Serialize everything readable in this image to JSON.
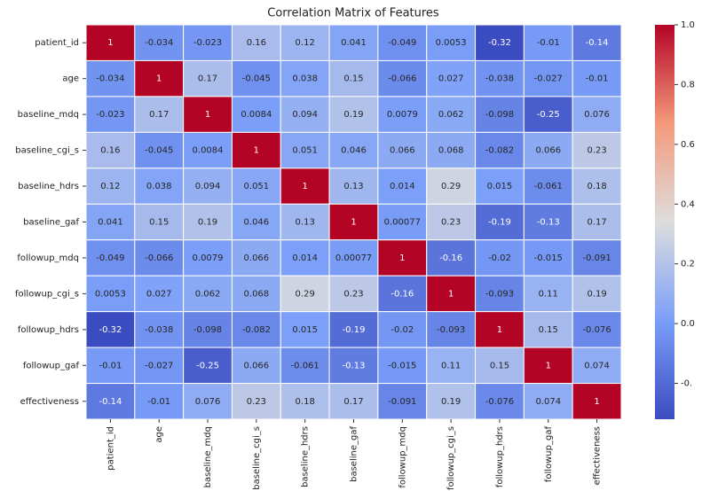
{
  "chart_data": {
    "type": "heatmap",
    "title": "Correlation Matrix of Features",
    "xcategories": [
      "patient_id",
      "age",
      "baseline_mdq",
      "baseline_cgi_s",
      "baseline_hdrs",
      "baseline_gaf",
      "followup_mdq",
      "followup_cgi_s",
      "followup_hdrs",
      "followup_gaf",
      "effectiveness"
    ],
    "ycategories": [
      "patient_id",
      "age",
      "baseline_mdq",
      "baseline_cgi_s",
      "baseline_hdrs",
      "baseline_gaf",
      "followup_mdq",
      "followup_cgi_s",
      "followup_hdrs",
      "followup_gaf",
      "effectiveness"
    ],
    "values": [
      [
        1,
        -0.034,
        -0.023,
        0.16,
        0.12,
        0.041,
        -0.049,
        0.0053,
        -0.32,
        -0.01,
        -0.14
      ],
      [
        -0.034,
        1,
        0.17,
        -0.045,
        0.038,
        0.15,
        -0.066,
        0.027,
        -0.038,
        -0.027,
        -0.01
      ],
      [
        -0.023,
        0.17,
        1,
        0.0084,
        0.094,
        0.19,
        0.0079,
        0.062,
        -0.098,
        -0.25,
        0.076
      ],
      [
        0.16,
        -0.045,
        0.0084,
        1,
        0.051,
        0.046,
        0.066,
        0.068,
        -0.082,
        0.066,
        0.23
      ],
      [
        0.12,
        0.038,
        0.094,
        0.051,
        1,
        0.13,
        0.014,
        0.29,
        0.015,
        -0.061,
        0.18
      ],
      [
        0.041,
        0.15,
        0.19,
        0.046,
        0.13,
        1,
        0.00077,
        0.23,
        -0.19,
        -0.13,
        0.17
      ],
      [
        -0.049,
        -0.066,
        0.0079,
        0.066,
        0.014,
        0.00077,
        1,
        -0.16,
        -0.02,
        -0.015,
        -0.091
      ],
      [
        0.0053,
        0.027,
        0.062,
        0.068,
        0.29,
        0.23,
        -0.16,
        1,
        -0.093,
        0.11,
        0.19
      ],
      [
        -0.32,
        -0.038,
        -0.098,
        -0.082,
        0.015,
        -0.19,
        -0.02,
        -0.093,
        1,
        0.15,
        -0.076
      ],
      [
        -0.01,
        -0.027,
        -0.25,
        0.066,
        -0.061,
        -0.13,
        -0.015,
        0.11,
        0.15,
        1,
        0.074
      ],
      [
        -0.14,
        -0.01,
        0.076,
        0.23,
        0.18,
        0.17,
        -0.091,
        0.19,
        -0.076,
        0.074,
        1
      ]
    ],
    "colormap": "coolwarm",
    "clim": [
      -0.32,
      1
    ],
    "colorbar_ticks": [
      {
        "value": 1,
        "label": "1.0"
      },
      0.8,
      0.6,
      0.4,
      0.2,
      {
        "value": 0,
        "label": "0.0"
      },
      {
        "value": -0.2,
        "label": "-0."
      }
    ]
  }
}
